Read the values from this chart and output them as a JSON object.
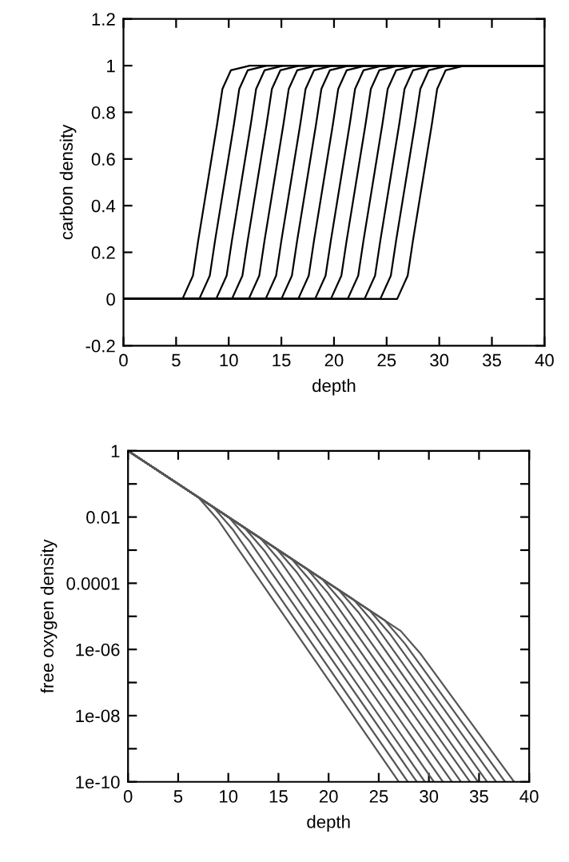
{
  "chart_data": [
    {
      "type": "line",
      "xlabel": "depth",
      "ylabel": "carbon density",
      "xlim": [
        0,
        40
      ],
      "ylim": [
        -0.2,
        1.2
      ],
      "xticks": [
        0,
        5,
        10,
        15,
        20,
        25,
        30,
        35,
        40
      ],
      "yticks": [
        -0.2,
        0,
        0.2,
        0.4,
        0.6,
        0.8,
        1,
        1.2
      ],
      "grid": false,
      "marker": "none",
      "line_style": "solid",
      "series": [
        {
          "color": "#000000",
          "x": [
            0,
            5.6,
            6.6,
            7.1,
            8,
            8.9,
            9.4,
            10.2,
            12,
            40
          ],
          "values": [
            0,
            0,
            0.1,
            0.25,
            0.5,
            0.75,
            0.9,
            0.98,
            1,
            1
          ]
        },
        {
          "color": "#000000",
          "x": [
            0,
            7.2,
            8.2,
            8.7,
            9.6,
            10.5,
            11,
            11.8,
            13.6,
            40
          ],
          "values": [
            0,
            0,
            0.1,
            0.25,
            0.5,
            0.75,
            0.9,
            0.98,
            1,
            1
          ]
        },
        {
          "color": "#000000",
          "x": [
            0,
            8.8,
            9.8,
            10.3,
            11.2,
            12.1,
            12.6,
            13.4,
            15.2,
            40
          ],
          "values": [
            0,
            0,
            0.1,
            0.25,
            0.5,
            0.75,
            0.9,
            0.98,
            1,
            1
          ]
        },
        {
          "color": "#000000",
          "x": [
            0,
            10.3,
            11.3,
            11.8,
            12.7,
            13.6,
            14.1,
            14.9,
            16.7,
            40
          ],
          "values": [
            0,
            0,
            0.1,
            0.25,
            0.5,
            0.75,
            0.9,
            0.98,
            1,
            1
          ]
        },
        {
          "color": "#000000",
          "x": [
            0,
            11.9,
            12.9,
            13.4,
            14.3,
            15.2,
            15.7,
            16.5,
            18.3,
            40
          ],
          "values": [
            0,
            0,
            0.1,
            0.25,
            0.5,
            0.75,
            0.9,
            0.98,
            1,
            1
          ]
        },
        {
          "color": "#000000",
          "x": [
            0,
            13.5,
            14.5,
            15,
            15.9,
            16.8,
            17.3,
            18.1,
            19.9,
            40
          ],
          "values": [
            0,
            0,
            0.1,
            0.25,
            0.5,
            0.75,
            0.9,
            0.98,
            1,
            1
          ]
        },
        {
          "color": "#000000",
          "x": [
            0,
            15,
            16,
            16.5,
            17.4,
            18.3,
            18.8,
            19.6,
            21.4,
            40
          ],
          "values": [
            0,
            0,
            0.1,
            0.25,
            0.5,
            0.75,
            0.9,
            0.98,
            1,
            1
          ]
        },
        {
          "color": "#000000",
          "x": [
            0,
            16.6,
            17.6,
            18.1,
            19,
            19.9,
            20.4,
            21.2,
            23,
            40
          ],
          "values": [
            0,
            0,
            0.1,
            0.25,
            0.5,
            0.75,
            0.9,
            0.98,
            1,
            1
          ]
        },
        {
          "color": "#000000",
          "x": [
            0,
            18.2,
            19.2,
            19.7,
            20.6,
            21.5,
            22,
            22.8,
            24.6,
            40
          ],
          "values": [
            0,
            0,
            0.1,
            0.25,
            0.5,
            0.75,
            0.9,
            0.98,
            1,
            1
          ]
        },
        {
          "color": "#000000",
          "x": [
            0,
            19.7,
            20.7,
            21.2,
            22.1,
            23,
            23.5,
            24.3,
            26.1,
            40
          ],
          "values": [
            0,
            0,
            0.1,
            0.25,
            0.5,
            0.75,
            0.9,
            0.98,
            1,
            1
          ]
        },
        {
          "color": "#000000",
          "x": [
            0,
            21.3,
            22.3,
            22.8,
            23.7,
            24.6,
            25.1,
            25.9,
            27.7,
            40
          ],
          "values": [
            0,
            0,
            0.1,
            0.25,
            0.5,
            0.75,
            0.9,
            0.98,
            1,
            1
          ]
        },
        {
          "color": "#000000",
          "x": [
            0,
            22.9,
            23.9,
            24.4,
            25.3,
            26.2,
            26.7,
            27.5,
            29.3,
            40
          ],
          "values": [
            0,
            0,
            0.1,
            0.25,
            0.5,
            0.75,
            0.9,
            0.98,
            1,
            1
          ]
        },
        {
          "color": "#000000",
          "x": [
            0,
            24.4,
            25.4,
            25.9,
            26.8,
            27.7,
            28.2,
            29,
            30.8,
            40
          ],
          "values": [
            0,
            0,
            0.1,
            0.25,
            0.5,
            0.75,
            0.9,
            0.98,
            1,
            1
          ]
        },
        {
          "color": "#000000",
          "x": [
            0,
            26,
            27,
            27.5,
            28.4,
            29.3,
            29.8,
            30.6,
            32.4,
            40
          ],
          "values": [
            0,
            0,
            0.1,
            0.25,
            0.5,
            0.75,
            0.9,
            0.98,
            1,
            1
          ]
        }
      ]
    },
    {
      "type": "line",
      "xlabel": "depth",
      "ylabel": "free oxygen density",
      "log": "y",
      "xlim": [
        0,
        40
      ],
      "ylim": [
        1e-10,
        1
      ],
      "xticks": [
        0,
        5,
        10,
        15,
        20,
        25,
        30,
        35,
        40
      ],
      "yticks": [
        {
          "value": 1e-10,
          "label": "1e-10"
        },
        {
          "value": 1e-09,
          "label": null
        },
        {
          "value": 1e-08,
          "label": "1e-08"
        },
        {
          "value": 1e-07,
          "label": null
        },
        {
          "value": 1e-06,
          "label": "1e-06"
        },
        {
          "value": 1e-05,
          "label": null
        },
        {
          "value": 0.0001,
          "label": "0.0001"
        },
        {
          "value": 0.001,
          "label": null
        },
        {
          "value": 0.01,
          "label": "0.01"
        },
        {
          "value": 0.1,
          "label": null
        },
        {
          "value": 1,
          "label": "1"
        }
      ],
      "grid": false,
      "marker": "none",
      "line_style": "solid",
      "series": [
        {
          "color": "#555555",
          "x": [
            0,
            7.0,
            9.0,
            27.0
          ],
          "values": [
            1,
            0.04,
            0.008,
            1e-10
          ]
        },
        {
          "color": "#555555",
          "x": [
            0,
            8.5,
            10.5,
            27.9
          ],
          "values": [
            1,
            0.02,
            0.004,
            1e-10
          ]
        },
        {
          "color": "#555555",
          "x": [
            0,
            10.1,
            12.1,
            28.8
          ],
          "values": [
            1,
            0.0095,
            0.0019,
            1e-10
          ]
        },
        {
          "color": "#555555",
          "x": [
            0,
            11.6,
            13.6,
            29.6
          ],
          "values": [
            1,
            0.0048,
            0.00096,
            1e-10
          ]
        },
        {
          "color": "#555555",
          "x": [
            0,
            13.2,
            15.2,
            30.5
          ],
          "values": [
            1,
            0.0023,
            0.00046,
            1e-10
          ]
        },
        {
          "color": "#555555",
          "x": [
            0,
            14.8,
            16.8,
            31.4
          ],
          "values": [
            1,
            0.0011,
            0.00022,
            1e-10
          ]
        },
        {
          "color": "#555555",
          "x": [
            0,
            16.3,
            18.3,
            32.3
          ],
          "values": [
            1,
            0.00055,
            0.00011,
            1e-10
          ]
        },
        {
          "color": "#555555",
          "x": [
            0,
            17.9,
            19.9,
            33.2
          ],
          "values": [
            1,
            0.00026,
            5.2e-05,
            1e-10
          ]
        },
        {
          "color": "#555555",
          "x": [
            0,
            19.4,
            21.4,
            34.1
          ],
          "values": [
            1,
            0.00013,
            2.6e-05,
            1e-10
          ]
        },
        {
          "color": "#555555",
          "x": [
            0,
            21.0,
            23.0,
            34.9
          ],
          "values": [
            1,
            6.3e-05,
            1.3e-05,
            1e-10
          ]
        },
        {
          "color": "#555555",
          "x": [
            0,
            22.5,
            24.5,
            35.8
          ],
          "values": [
            1,
            3.2e-05,
            6.4e-06,
            1e-10
          ]
        },
        {
          "color": "#555555",
          "x": [
            0,
            24.1,
            26.1,
            36.7
          ],
          "values": [
            1,
            1.5e-05,
            3e-06,
            1e-10
          ]
        },
        {
          "color": "#555555",
          "x": [
            0,
            25.6,
            27.6,
            37.6
          ],
          "values": [
            1,
            7.6e-06,
            1.5e-06,
            1e-10
          ]
        },
        {
          "color": "#555555",
          "x": [
            0,
            27.2,
            29.2,
            38.5
          ],
          "values": [
            1,
            3.6e-06,
            7.2e-07,
            1e-10
          ]
        }
      ]
    }
  ]
}
